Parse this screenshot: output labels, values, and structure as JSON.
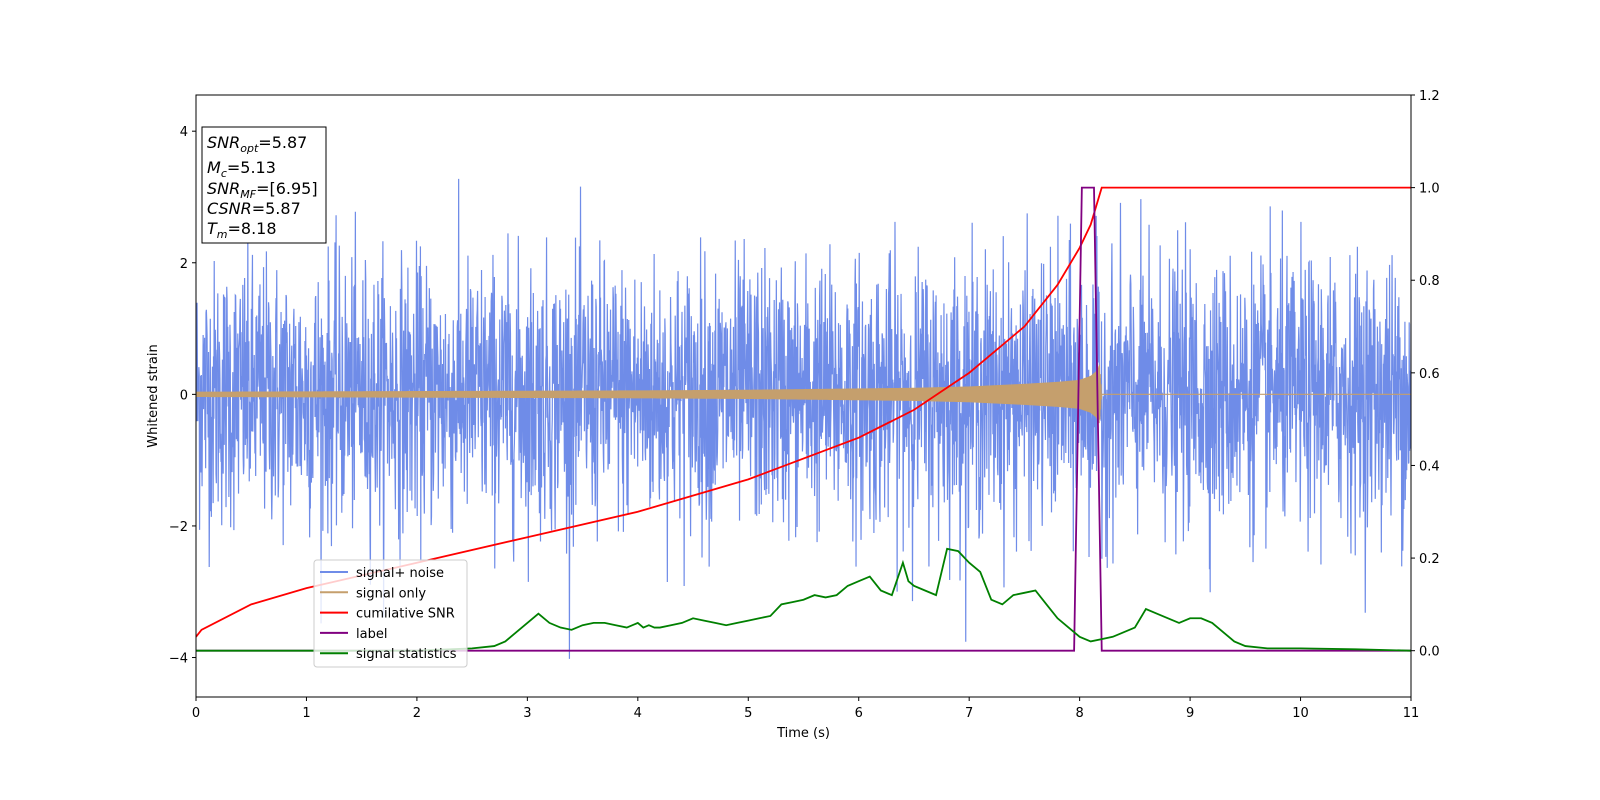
{
  "chart_data": {
    "type": "line",
    "title": "",
    "xlabel": "Time (s)",
    "ylabel": "Whitened strain",
    "xlim": [
      0,
      11
    ],
    "ylim_left": [
      -4.6,
      4.55
    ],
    "ylim_right": [
      -0.1,
      1.2
    ],
    "xticks": [
      "0",
      "1",
      "2",
      "3",
      "4",
      "5",
      "6",
      "7",
      "8",
      "9",
      "10",
      "11"
    ],
    "yticks_left": [
      "−4",
      "−2",
      "0",
      "2",
      "4"
    ],
    "yticks_right": [
      "0.0",
      "0.2",
      "0.4",
      "0.6",
      "0.8",
      "1.0",
      "1.2"
    ],
    "grid": false,
    "legend_position": "lower-left",
    "info_box": [
      {
        "base": "SNR",
        "sub": "opt",
        "value": "=5.87"
      },
      {
        "base": "M",
        "sub": "c",
        "value": "=5.13"
      },
      {
        "base": "SNR",
        "sub": "MF",
        "value": "=[6.95]"
      },
      {
        "base": "CSNR",
        "sub": "",
        "value": "=5.87"
      },
      {
        "base": "T",
        "sub": "m",
        "value": "=8.18"
      }
    ],
    "series": [
      {
        "name": "signal+ noise",
        "color": "#6f8ce8",
        "axis": "left",
        "kind": "noise",
        "amplitude_sigma": 1.0,
        "min": -4.15,
        "max": 3.85,
        "x_range": [
          0,
          11
        ]
      },
      {
        "name": "signal only",
        "color": "#c59f6d",
        "axis": "left",
        "kind": "chirp",
        "envelope": {
          "x": [
            0,
            2,
            4,
            5,
            6,
            6.5,
            7,
            7.5,
            7.8,
            8.0,
            8.1,
            8.15,
            8.18,
            8.2
          ],
          "y": [
            0.04,
            0.05,
            0.06,
            0.07,
            0.09,
            0.1,
            0.12,
            0.16,
            0.19,
            0.22,
            0.28,
            0.35,
            0.45,
            0
          ]
        },
        "end_x": 8.2
      },
      {
        "name": "cumilative SNR",
        "color": "#ff0000",
        "axis": "right",
        "x": [
          0,
          0.05,
          0.5,
          1,
          2,
          3,
          4,
          5,
          6,
          6.5,
          7,
          7.5,
          7.8,
          8.0,
          8.1,
          8.2,
          8.5,
          9,
          10,
          11
        ],
        "y": [
          0.03,
          0.045,
          0.1,
          0.135,
          0.19,
          0.245,
          0.3,
          0.37,
          0.46,
          0.52,
          0.6,
          0.7,
          0.79,
          0.87,
          0.92,
          1.0,
          1.0,
          1.0,
          1.0,
          1.0
        ]
      },
      {
        "name": "label",
        "color": "#800080",
        "axis": "right",
        "x": [
          0,
          7.95,
          8.02,
          8.13,
          8.2,
          11
        ],
        "y": [
          0,
          0,
          1.0,
          1.0,
          0,
          0
        ]
      },
      {
        "name": "signal statistics",
        "color": "#008000",
        "axis": "right",
        "x": [
          0,
          1,
          2,
          2.5,
          2.7,
          2.8,
          2.9,
          3.0,
          3.1,
          3.2,
          3.3,
          3.4,
          3.5,
          3.6,
          3.7,
          3.8,
          3.9,
          4.0,
          4.05,
          4.1,
          4.15,
          4.2,
          4.3,
          4.4,
          4.5,
          4.6,
          4.7,
          4.8,
          4.9,
          5.0,
          5.1,
          5.2,
          5.3,
          5.4,
          5.5,
          5.6,
          5.7,
          5.8,
          5.9,
          6.0,
          6.1,
          6.2,
          6.3,
          6.4,
          6.45,
          6.5,
          6.6,
          6.7,
          6.8,
          6.9,
          7.0,
          7.1,
          7.2,
          7.3,
          7.4,
          7.5,
          7.6,
          7.7,
          7.8,
          7.9,
          8.0,
          8.1,
          8.2,
          8.3,
          8.4,
          8.5,
          8.6,
          8.7,
          8.8,
          8.9,
          9.0,
          9.1,
          9.2,
          9.3,
          9.4,
          9.5,
          9.7,
          10.0,
          10.5,
          11.0
        ],
        "y": [
          0.0,
          0.0,
          0.0,
          0.005,
          0.01,
          0.02,
          0.04,
          0.06,
          0.08,
          0.06,
          0.05,
          0.045,
          0.055,
          0.06,
          0.06,
          0.055,
          0.05,
          0.06,
          0.05,
          0.055,
          0.05,
          0.05,
          0.055,
          0.06,
          0.07,
          0.065,
          0.06,
          0.055,
          0.06,
          0.065,
          0.07,
          0.075,
          0.1,
          0.105,
          0.11,
          0.12,
          0.115,
          0.12,
          0.14,
          0.15,
          0.16,
          0.13,
          0.12,
          0.19,
          0.15,
          0.14,
          0.13,
          0.12,
          0.22,
          0.215,
          0.19,
          0.17,
          0.11,
          0.1,
          0.12,
          0.125,
          0.13,
          0.1,
          0.07,
          0.05,
          0.03,
          0.02,
          0.025,
          0.03,
          0.04,
          0.05,
          0.09,
          0.08,
          0.07,
          0.06,
          0.07,
          0.07,
          0.06,
          0.04,
          0.02,
          0.01,
          0.005,
          0.005,
          0.003,
          0.0
        ]
      }
    ]
  }
}
